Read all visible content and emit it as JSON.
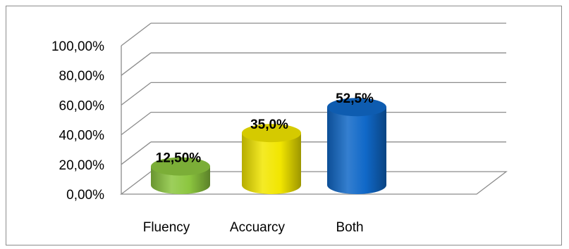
{
  "chart_data": {
    "type": "bar",
    "style": "3d-cylinder",
    "categories": [
      "Fluency",
      "Accuarcy",
      "Both"
    ],
    "values": [
      12.5,
      35.0,
      52.5
    ],
    "data_labels": [
      "12,50%",
      "35,0%",
      "52,5%"
    ],
    "y_tick_labels": [
      "0,00%",
      "20,00%",
      "40,00%",
      "60,00%",
      "80,00%",
      "100,00%"
    ],
    "ylim": [
      0,
      100
    ],
    "grid": true,
    "legend": "none",
    "title": "",
    "xlabel": "",
    "ylabel": "",
    "colors": {
      "Fluency": "#8cc63f",
      "Accuarcy": "#f2e600",
      "Both": "#1068c8",
      "grid": "#8c8c8c",
      "frame": "#8c8c8c"
    }
  }
}
